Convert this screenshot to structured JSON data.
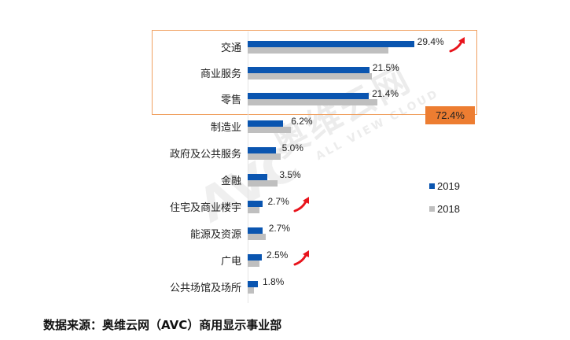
{
  "chart_data": {
    "type": "bar",
    "orientation": "horizontal",
    "title": "",
    "xlabel": "",
    "ylabel": "",
    "categories": [
      "交通",
      "商业服务",
      "零售",
      "制造业",
      "政府及公共服务",
      "金融",
      "住宅及商业楼宇",
      "能源及资源",
      "广电",
      "公共场馆及场所"
    ],
    "series": [
      {
        "name": "2019",
        "color": "#0a55b0",
        "values": [
          29.4,
          21.5,
          21.4,
          6.2,
          5.0,
          3.5,
          2.7,
          2.7,
          2.5,
          1.8
        ]
      },
      {
        "name": "2018",
        "color": "#bfbfbf",
        "values": [
          24.8,
          21.9,
          22.9,
          7.6,
          5.8,
          5.3,
          2.1,
          3.2,
          2.1,
          1.1
        ]
      }
    ],
    "data_labels": [
      "29.4%",
      "21.5%",
      "21.4%",
      "6.2%",
      "5.0%",
      "3.5%",
      "2.7%",
      "2.7%",
      "2.5%",
      "1.8%"
    ],
    "legend": {
      "position": "right",
      "entries": [
        "2019",
        "2018"
      ]
    },
    "annotations": {
      "highlight_box": {
        "categories": [
          "交通",
          "商业服务",
          "零售"
        ],
        "total_label": "72.4%",
        "color": "#ed7d31"
      },
      "up_arrows": [
        "交通",
        "住宅及商业楼宇",
        "广电"
      ]
    },
    "grid": false,
    "xlim": [
      0,
      30
    ]
  },
  "watermark": {
    "cn": "奥维云网",
    "en": "ALL VIEW CLOUD",
    "logo": "AVC"
  },
  "source_note": "数据来源：奥维云网（AVC）商用显示事业部"
}
